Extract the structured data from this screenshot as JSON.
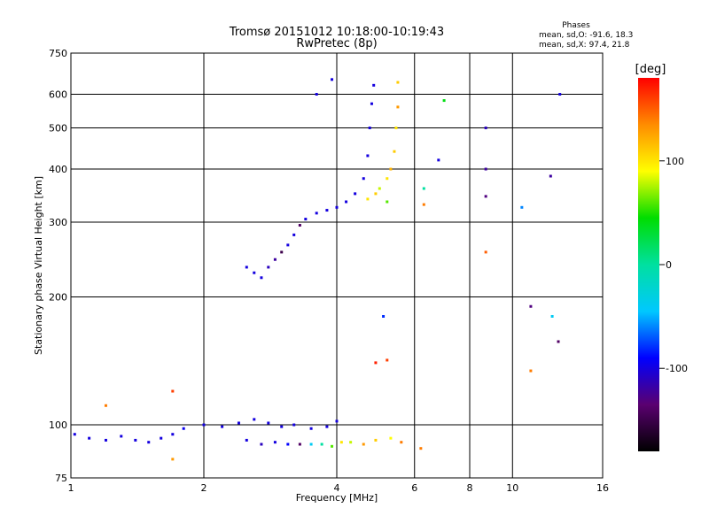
{
  "chart_data": {
    "type": "scatter",
    "title": "Tromsø 20151012 10:18:00-10:19:43",
    "subtitle": "RwPretec (8p)",
    "stats": {
      "heading": "Phases",
      "line1": "mean, sd,O: -91.6, 18.3",
      "line2": "mean, sd,X:  97.4, 21.8"
    },
    "xlabel": "Frequency [MHz]",
    "ylabel": "Stationary phase Virtual Height [km]",
    "x_scale": "log",
    "y_scale": "log",
    "xlim": [
      1,
      16
    ],
    "ylim": [
      75,
      750
    ],
    "x_ticks": [
      "1",
      "2",
      "4",
      "6",
      "8",
      "10",
      "16"
    ],
    "y_ticks": [
      "75",
      "100",
      "200",
      "300",
      "400",
      "500",
      "600",
      "750"
    ],
    "x_tick_values": [
      1,
      2,
      4,
      6,
      8,
      10,
      16
    ],
    "y_tick_values": [
      75,
      100,
      200,
      300,
      400,
      500,
      600,
      750
    ],
    "grid": true,
    "colorbar": {
      "label": "[deg]",
      "range": [
        -180,
        180
      ],
      "ticks": [
        "100",
        "0",
        "-100"
      ],
      "tick_values": [
        100,
        0,
        -100
      ],
      "colors": [
        "#000000",
        "#5a0070",
        "#0000ff",
        "#00c8ff",
        "#00e0a0",
        "#00dd00",
        "#ffff00",
        "#ff8c00",
        "#ff0000"
      ]
    },
    "series": [
      {
        "values": [
          {
            "x": 1.02,
            "y": 95,
            "phase": -100
          },
          {
            "x": 1.1,
            "y": 93,
            "phase": -100
          },
          {
            "x": 1.2,
            "y": 92,
            "phase": -100
          },
          {
            "x": 1.3,
            "y": 94,
            "phase": -100
          },
          {
            "x": 1.4,
            "y": 92,
            "phase": -100
          },
          {
            "x": 1.5,
            "y": 91,
            "phase": -100
          },
          {
            "x": 1.6,
            "y": 93,
            "phase": -100
          },
          {
            "x": 1.7,
            "y": 95,
            "phase": -100
          },
          {
            "x": 1.8,
            "y": 98,
            "phase": -95
          },
          {
            "x": 2.0,
            "y": 100,
            "phase": -100
          },
          {
            "x": 2.2,
            "y": 99,
            "phase": -100
          },
          {
            "x": 2.4,
            "y": 101,
            "phase": -100
          },
          {
            "x": 2.6,
            "y": 103,
            "phase": -100
          },
          {
            "x": 2.8,
            "y": 101,
            "phase": -100
          },
          {
            "x": 3.0,
            "y": 99,
            "phase": -100
          },
          {
            "x": 3.2,
            "y": 100,
            "phase": -100
          },
          {
            "x": 3.5,
            "y": 98,
            "phase": -100
          },
          {
            "x": 3.8,
            "y": 99,
            "phase": -100
          },
          {
            "x": 4.0,
            "y": 102,
            "phase": -100
          }
        ]
      },
      {
        "values": [
          {
            "x": 2.5,
            "y": 92,
            "phase": -100
          },
          {
            "x": 2.7,
            "y": 90,
            "phase": -110
          },
          {
            "x": 2.9,
            "y": 91,
            "phase": -100
          },
          {
            "x": 3.1,
            "y": 90,
            "phase": -90
          },
          {
            "x": 3.3,
            "y": 90,
            "phase": -140
          },
          {
            "x": 3.5,
            "y": 90,
            "phase": -40
          },
          {
            "x": 3.7,
            "y": 90,
            "phase": 0
          },
          {
            "x": 3.9,
            "y": 89,
            "phase": 60
          },
          {
            "x": 4.1,
            "y": 91,
            "phase": 100
          },
          {
            "x": 4.3,
            "y": 91,
            "phase": 80
          },
          {
            "x": 4.6,
            "y": 90,
            "phase": 130
          },
          {
            "x": 4.9,
            "y": 92,
            "phase": 110
          },
          {
            "x": 5.3,
            "y": 93,
            "phase": 90
          },
          {
            "x": 5.6,
            "y": 91,
            "phase": 140
          }
        ]
      },
      {
        "values": [
          {
            "x": 2.5,
            "y": 235,
            "phase": -100
          },
          {
            "x": 2.6,
            "y": 228,
            "phase": -100
          },
          {
            "x": 2.7,
            "y": 222,
            "phase": -100
          },
          {
            "x": 2.8,
            "y": 235,
            "phase": -110
          },
          {
            "x": 2.9,
            "y": 245,
            "phase": -120
          },
          {
            "x": 3.0,
            "y": 255,
            "phase": -150
          },
          {
            "x": 3.1,
            "y": 265,
            "phase": -100
          },
          {
            "x": 3.2,
            "y": 280,
            "phase": -100
          },
          {
            "x": 3.3,
            "y": 295,
            "phase": -140
          },
          {
            "x": 3.4,
            "y": 305,
            "phase": -100
          },
          {
            "x": 3.6,
            "y": 315,
            "phase": -100
          },
          {
            "x": 3.8,
            "y": 320,
            "phase": -100
          },
          {
            "x": 4.0,
            "y": 325,
            "phase": -100
          },
          {
            "x": 4.2,
            "y": 335,
            "phase": -100
          },
          {
            "x": 4.4,
            "y": 350,
            "phase": -100
          },
          {
            "x": 4.6,
            "y": 380,
            "phase": -100
          },
          {
            "x": 4.7,
            "y": 430,
            "phase": -100
          },
          {
            "x": 4.75,
            "y": 500,
            "phase": -100
          },
          {
            "x": 4.8,
            "y": 570,
            "phase": -100
          },
          {
            "x": 4.85,
            "y": 630,
            "phase": -100
          },
          {
            "x": 3.9,
            "y": 650,
            "phase": -100
          },
          {
            "x": 3.6,
            "y": 600,
            "phase": -100
          }
        ]
      },
      {
        "values": [
          {
            "x": 4.7,
            "y": 340,
            "phase": 100
          },
          {
            "x": 4.9,
            "y": 350,
            "phase": 110
          },
          {
            "x": 5.0,
            "y": 360,
            "phase": 80
          },
          {
            "x": 5.2,
            "y": 380,
            "phase": 100
          },
          {
            "x": 5.3,
            "y": 400,
            "phase": 120
          },
          {
            "x": 5.4,
            "y": 440,
            "phase": 110
          },
          {
            "x": 5.45,
            "y": 500,
            "phase": 100
          },
          {
            "x": 5.5,
            "y": 560,
            "phase": 130
          },
          {
            "x": 5.5,
            "y": 640,
            "phase": 110
          },
          {
            "x": 5.2,
            "y": 335,
            "phase": 60
          }
        ]
      },
      {
        "values": [
          {
            "x": 6.3,
            "y": 360,
            "phase": 0
          },
          {
            "x": 6.3,
            "y": 330,
            "phase": 140
          },
          {
            "x": 7.0,
            "y": 580,
            "phase": 40
          },
          {
            "x": 6.8,
            "y": 420,
            "phase": -100
          },
          {
            "x": 8.7,
            "y": 500,
            "phase": -110
          },
          {
            "x": 8.7,
            "y": 400,
            "phase": -120
          },
          {
            "x": 8.7,
            "y": 345,
            "phase": -130
          },
          {
            "x": 8.7,
            "y": 255,
            "phase": 150
          },
          {
            "x": 10.5,
            "y": 325,
            "phase": -60
          },
          {
            "x": 12.2,
            "y": 385,
            "phase": -120
          },
          {
            "x": 11.0,
            "y": 190,
            "phase": -130
          },
          {
            "x": 12.3,
            "y": 180,
            "phase": -40
          },
          {
            "x": 12.7,
            "y": 157,
            "phase": -140
          },
          {
            "x": 11.0,
            "y": 134,
            "phase": 140
          },
          {
            "x": 5.1,
            "y": 180,
            "phase": -80
          },
          {
            "x": 5.2,
            "y": 142,
            "phase": 160
          },
          {
            "x": 4.9,
            "y": 140,
            "phase": 170
          },
          {
            "x": 1.7,
            "y": 120,
            "phase": 160
          },
          {
            "x": 1.2,
            "y": 111,
            "phase": 140
          },
          {
            "x": 1.7,
            "y": 83,
            "phase": 130
          },
          {
            "x": 6.2,
            "y": 88,
            "phase": 140
          },
          {
            "x": 12.8,
            "y": 600,
            "phase": -100
          }
        ]
      }
    ]
  }
}
